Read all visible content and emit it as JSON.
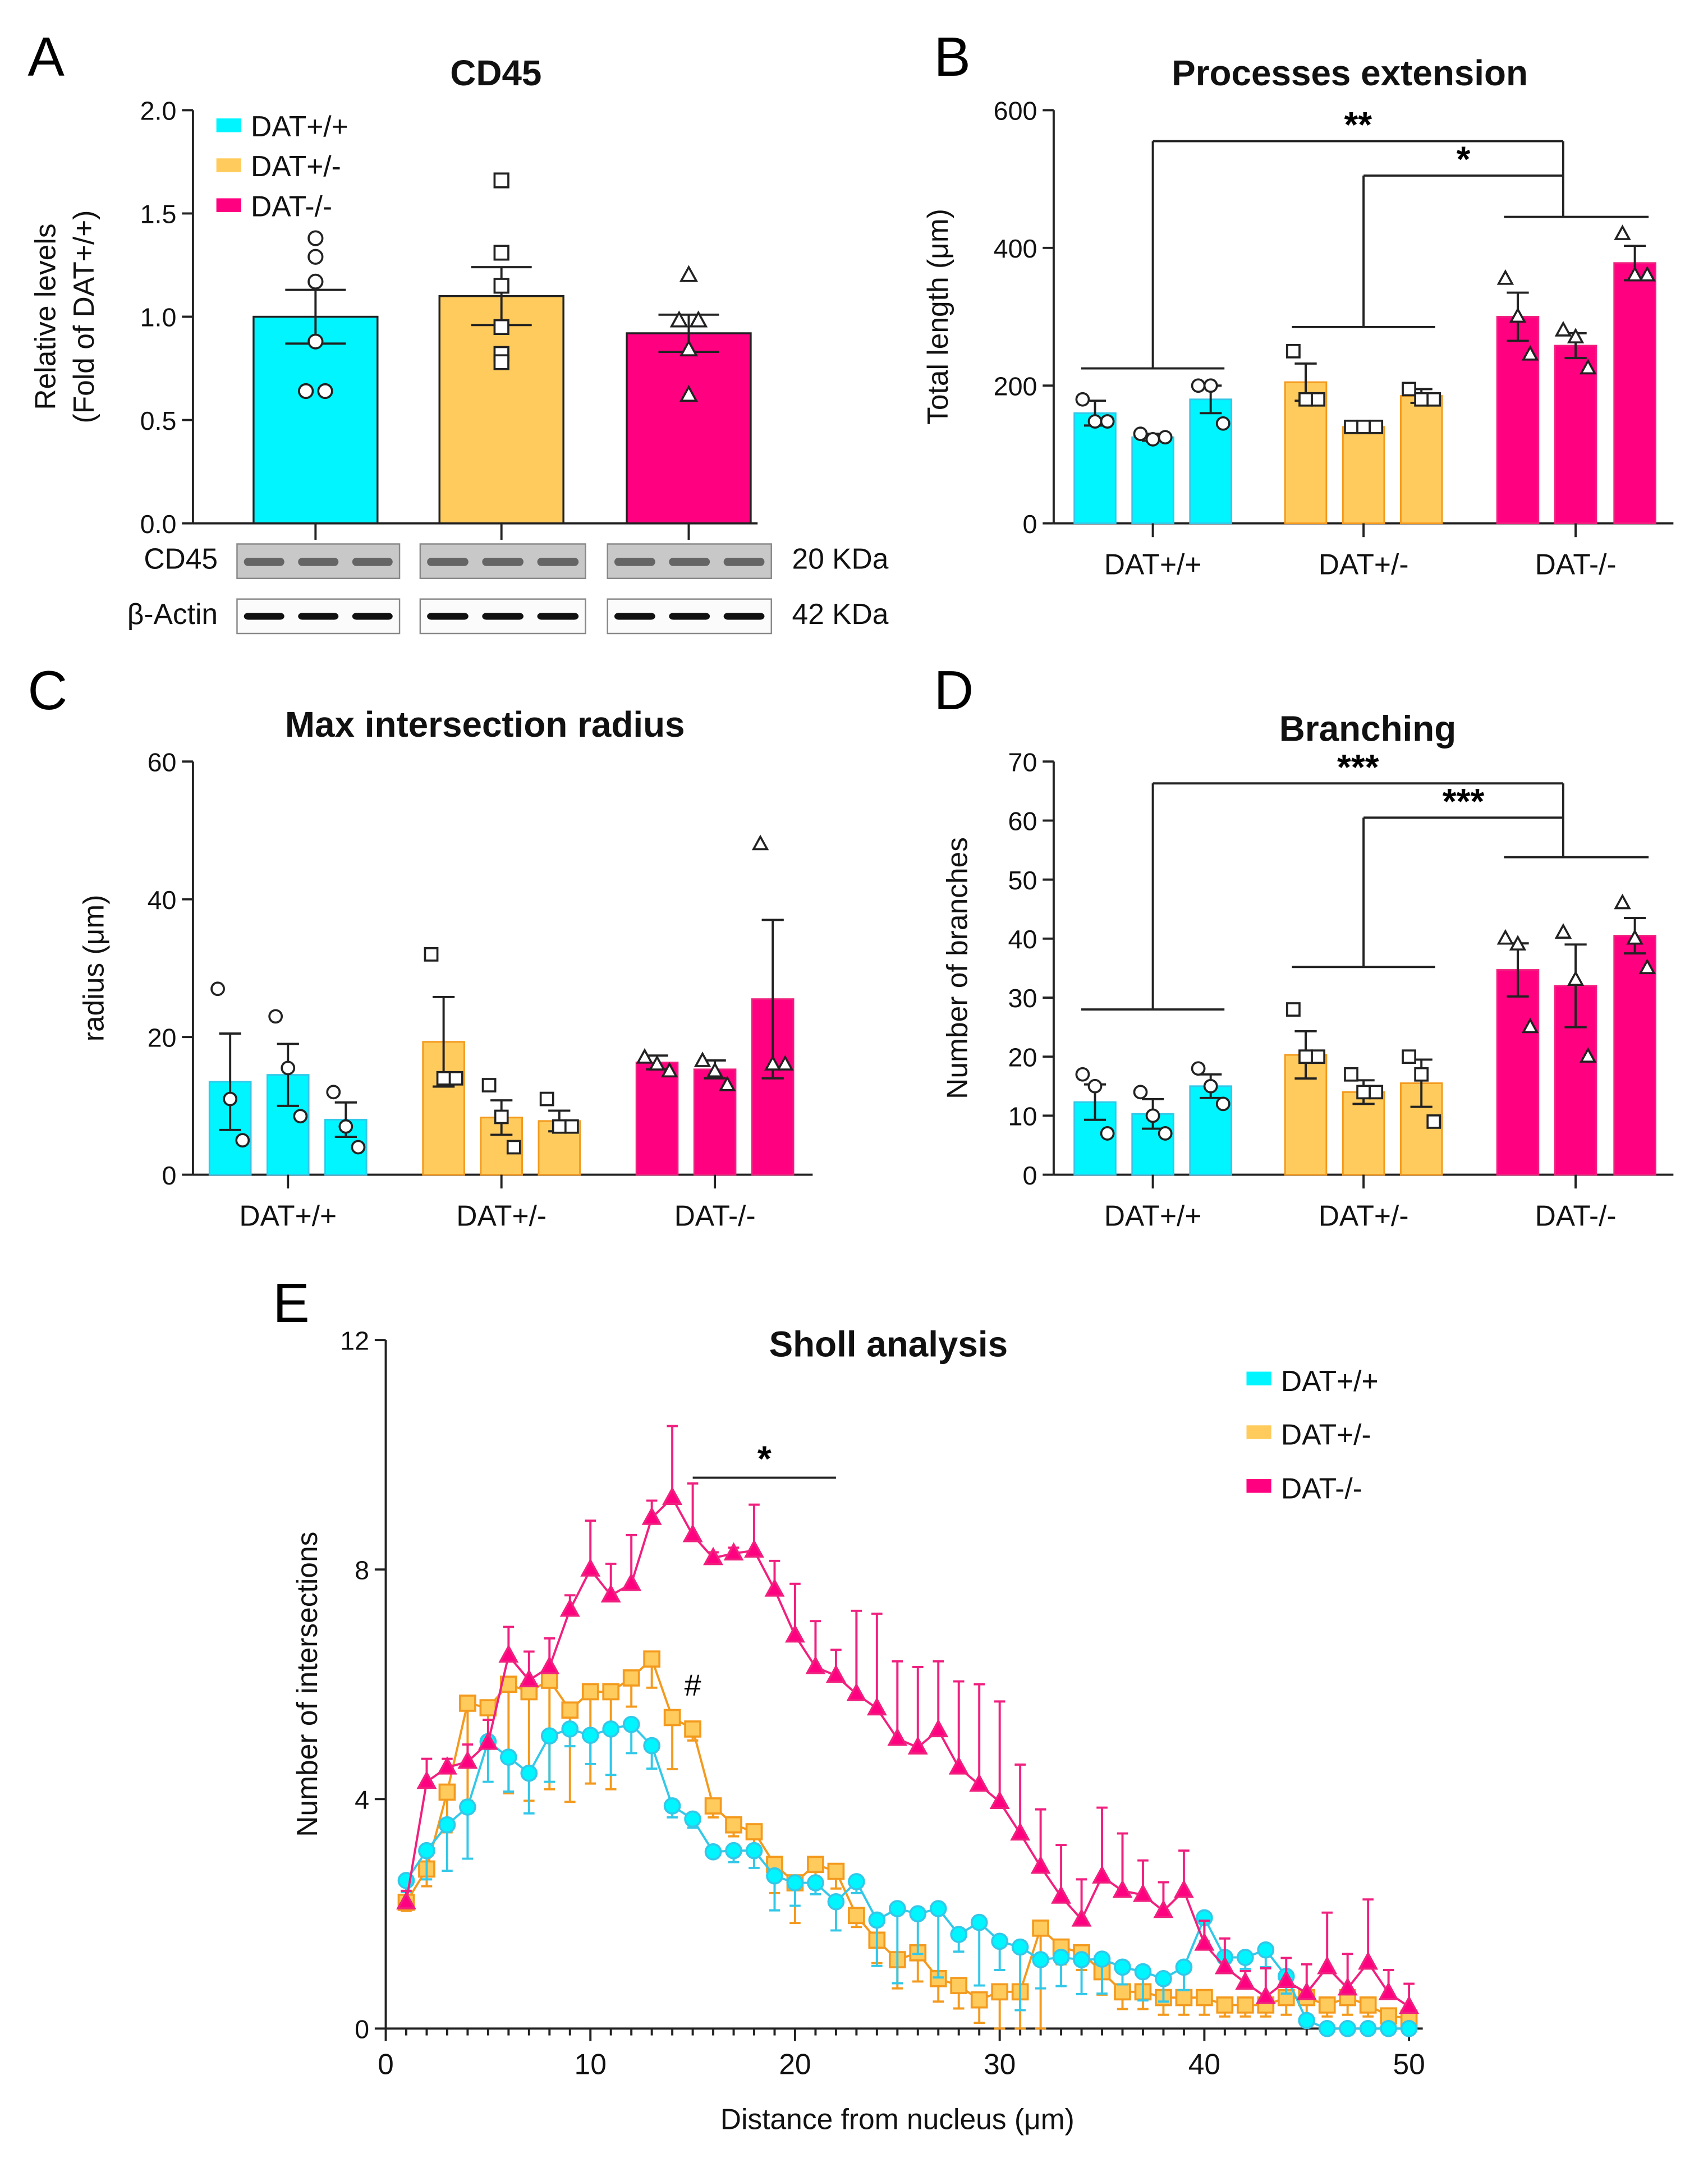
{
  "colors": {
    "wt": "#00F5FF",
    "het": "#FFCB5C",
    "ko": "#FF0080",
    "wt_line": "#33C8E8",
    "het_line": "#F39A1E",
    "ko_line": "#F0207F"
  },
  "chart_data": [
    {
      "panel": "A",
      "type": "bar",
      "title": "CD45",
      "ylabel": [
        "Relative levels",
        "(Fold of DAT+/+)"
      ],
      "ylim": [
        0,
        2.0
      ],
      "yticks": [
        "0.0",
        "0.5",
        "1.0",
        "1.5",
        "2.0"
      ],
      "legend": [
        "DAT+/+",
        "DAT+/-",
        "DAT-/-"
      ],
      "legend_placement": "top-left",
      "bars": [
        {
          "group": "DAT+/+",
          "value": 1.0,
          "sem": 0.13,
          "points": [
            1.38,
            1.29,
            1.17,
            0.88,
            0.64,
            0.64
          ]
        },
        {
          "group": "DAT+/-",
          "value": 1.1,
          "sem": 0.14,
          "points": [
            1.66,
            1.31,
            1.15,
            0.95,
            0.82,
            0.78
          ]
        },
        {
          "group": "DAT-/-",
          "value": 0.92,
          "sem": 0.09,
          "points": [
            1.2,
            0.98,
            0.98,
            0.84,
            0.62
          ]
        }
      ],
      "blot": {
        "rows": [
          {
            "label": "CD45",
            "size": "20 KDa"
          },
          {
            "label": "β-Actin",
            "size": "42 KDa"
          }
        ]
      }
    },
    {
      "panel": "B",
      "type": "bar",
      "title": "Processes extension",
      "ylabel": "Total length (μm)",
      "ylim": [
        0,
        600
      ],
      "yticks": [
        "0",
        "200",
        "400",
        "600"
      ],
      "categories": [
        "DAT+/+",
        "DAT+/-",
        "DAT-/-"
      ],
      "bars": [
        [
          {
            "value": 160,
            "sem": 18,
            "points": [
              180,
              148,
              148
            ]
          },
          {
            "value": 125,
            "sem": 5,
            "points": [
              130,
              122,
              125
            ]
          },
          {
            "value": 180,
            "sem": 20,
            "points": [
              200,
              200,
              145
            ]
          }
        ],
        [
          {
            "value": 205,
            "sem": 27,
            "points": [
              250,
              180,
              180
            ]
          },
          {
            "value": 140,
            "sem": 5,
            "points": [
              140,
              140,
              140
            ]
          },
          {
            "value": 185,
            "sem": 10,
            "points": [
              195,
              180,
              180
            ]
          }
        ],
        [
          {
            "value": 300,
            "sem": 35,
            "points": [
              355,
              300,
              245
            ]
          },
          {
            "value": 258,
            "sem": 18,
            "points": [
              280,
              270,
              225
            ]
          },
          {
            "value": 378,
            "sem": 25,
            "points": [
              420,
              360,
              360
            ]
          }
        ]
      ],
      "significance": [
        {
          "from": "DAT+/+",
          "to": "DAT-/-",
          "label": "**"
        },
        {
          "from": "DAT+/-",
          "to": "DAT-/-",
          "label": "*"
        }
      ],
      "group_lines": [
        225,
        285,
        445
      ],
      "bracket_levels": [
        555,
        505
      ]
    },
    {
      "panel": "C",
      "type": "bar",
      "title": "Max intersection radius",
      "ylabel": "radius (μm)",
      "ylim": [
        0,
        60
      ],
      "yticks": [
        "0",
        "20",
        "40",
        "60"
      ],
      "categories": [
        "DAT+/+",
        "DAT+/-",
        "DAT-/-"
      ],
      "bars": [
        [
          {
            "value": 13.5,
            "sem": 7,
            "points": [
              27,
              11,
              5
            ]
          },
          {
            "value": 14.5,
            "sem": 4.5,
            "points": [
              23,
              15.5,
              8.5
            ]
          },
          {
            "value": 8,
            "sem": 2.5,
            "points": [
              12,
              7,
              4
            ]
          }
        ],
        [
          {
            "value": 19.3,
            "sem": 6.5,
            "points": [
              32,
              14,
              14
            ]
          },
          {
            "value": 8.3,
            "sem": 2.5,
            "points": [
              13,
              8.4,
              4
            ]
          },
          {
            "value": 7.8,
            "sem": 1.5,
            "points": [
              11,
              7,
              7
            ]
          }
        ],
        [
          {
            "value": 16.3,
            "sem": 1,
            "points": [
              17,
              16,
              15
            ]
          },
          {
            "value": 15.3,
            "sem": 1.3,
            "points": [
              16.5,
              15,
              13
            ]
          },
          {
            "value": 25.5,
            "sem": 11.5,
            "points": [
              48,
              16,
              16
            ]
          }
        ]
      ]
    },
    {
      "panel": "D",
      "type": "bar",
      "title": "Branching",
      "ylabel": "Number of branches",
      "ylim": [
        0,
        70
      ],
      "yticks": [
        "0",
        "10",
        "20",
        "30",
        "40",
        "50",
        "60",
        "70"
      ],
      "categories": [
        "DAT+/+",
        "DAT+/-",
        "DAT-/-"
      ],
      "bars": [
        [
          {
            "value": 12.3,
            "sem": 3,
            "points": [
              17,
              15,
              7
            ]
          },
          {
            "value": 10.3,
            "sem": 2.5,
            "points": [
              14,
              10,
              7
            ]
          },
          {
            "value": 15,
            "sem": 2,
            "points": [
              18,
              15,
              12
            ]
          }
        ],
        [
          {
            "value": 20.3,
            "sem": 4,
            "points": [
              28,
              20,
              20
            ]
          },
          {
            "value": 14,
            "sem": 2,
            "points": [
              17,
              14,
              14
            ]
          },
          {
            "value": 15.5,
            "sem": 4,
            "points": [
              20,
              17,
              9
            ]
          }
        ],
        [
          {
            "value": 34.7,
            "sem": 4.5,
            "points": [
              40,
              39,
              25
            ]
          },
          {
            "value": 32,
            "sem": 7,
            "points": [
              41,
              33,
              20
            ]
          },
          {
            "value": 40.5,
            "sem": 3,
            "points": [
              46,
              40,
              35
            ]
          }
        ]
      ],
      "significance": [
        {
          "from": "DAT+/+",
          "to": "DAT-/-",
          "label": "***"
        },
        {
          "from": "DAT+/-",
          "to": "DAT-/-",
          "label": "***"
        }
      ],
      "group_lines": [
        28,
        35.2,
        53.8
      ],
      "bracket_levels": [
        66.3,
        60.5
      ]
    },
    {
      "panel": "E",
      "type": "line",
      "title": "Sholl analysis",
      "xlabel": "Distance from nucleus (μm)",
      "ylabel": "Number of intersections",
      "xlim": [
        0,
        50
      ],
      "ylim": [
        0,
        12
      ],
      "xticks": [
        "0",
        "10",
        "20",
        "30",
        "40",
        "50"
      ],
      "yticks": [
        "0",
        "4",
        "8",
        "12"
      ],
      "legend_placement": "top-right",
      "x": [
        1,
        2,
        3,
        4,
        5,
        6,
        7,
        8,
        9,
        10,
        11,
        12,
        13,
        14,
        15,
        16,
        17,
        18,
        19,
        20,
        21,
        22,
        23,
        24,
        25,
        26,
        27,
        28,
        29,
        30,
        31,
        32,
        33,
        34,
        35,
        36,
        37,
        38,
        39,
        40,
        41,
        42,
        43,
        44,
        45,
        46,
        47,
        48,
        49,
        50
      ],
      "series": [
        {
          "name": "DAT+/+",
          "marker": "circle",
          "error": "down",
          "values": [
            2.58,
            3.1,
            3.55,
            3.86,
            5.0,
            4.73,
            4.45,
            5.1,
            5.22,
            5.11,
            5.22,
            5.3,
            4.93,
            3.88,
            3.65,
            3.08,
            3.1,
            3.1,
            2.66,
            2.54,
            2.54,
            2.21,
            2.56,
            1.89,
            2.09,
            2.0,
            2.09,
            1.64,
            1.85,
            1.52,
            1.42,
            1.2,
            1.24,
            1.2,
            1.21,
            1.07,
            0.99,
            0.87,
            1.07,
            1.93,
            1.24,
            1.24,
            1.37,
            0.91,
            0.14,
            0,
            0,
            0,
            0,
            0
          ],
          "sem": [
            0.2,
            0.5,
            0.8,
            0.9,
            0.7,
            0.6,
            0.7,
            0.8,
            0.3,
            0.5,
            0.8,
            0.5,
            0.4,
            0.2,
            0.15,
            0.1,
            0.2,
            0.3,
            0.6,
            0.4,
            0.2,
            0.5,
            0.2,
            0.8,
            1.3,
            0.7,
            1.2,
            0.3,
            1.1,
            0.5,
            1.1,
            0.5,
            0.5,
            0.6,
            0.6,
            0.3,
            0.5,
            0.4,
            0.4,
            0.4,
            0.2,
            0.2,
            0.3,
            0.3,
            0.05,
            0,
            0,
            0,
            0,
            0
          ]
        },
        {
          "name": "DAT+/-",
          "marker": "square",
          "error": "down",
          "values": [
            2.2,
            2.78,
            4.12,
            5.67,
            5.59,
            6.0,
            5.87,
            6.07,
            5.55,
            5.87,
            5.87,
            6.11,
            6.44,
            5.42,
            5.22,
            3.88,
            3.55,
            3.43,
            2.86,
            2.54,
            2.86,
            2.74,
            1.97,
            1.54,
            1.2,
            1.32,
            0.87,
            0.75,
            0.5,
            0.64,
            0.64,
            1.75,
            1.42,
            1.32,
            0.99,
            0.64,
            0.64,
            0.54,
            0.54,
            0.54,
            0.41,
            0.41,
            0.41,
            0.54,
            0.54,
            0.41,
            0.54,
            0.41,
            0.22,
            0.18
          ],
          "sem": [
            0.15,
            0.3,
            0.7,
            1.7,
            0.7,
            1.9,
            1.9,
            1.9,
            1.6,
            1.6,
            1.7,
            0.5,
            0.5,
            0.9,
            0.2,
            0.2,
            0.2,
            0.4,
            0.5,
            0.7,
            0.3,
            0.3,
            0.2,
            0.4,
            0.5,
            0.5,
            0.4,
            0.4,
            0.4,
            0.64,
            0.64,
            1.75,
            0.3,
            0.3,
            0.4,
            0.3,
            0.3,
            0.3,
            0.3,
            0.3,
            0.2,
            0.2,
            0.2,
            0.3,
            0.3,
            0.2,
            0.3,
            0.2,
            0.1,
            0.1
          ]
        },
        {
          "name": "DAT-/-",
          "marker": "triangle",
          "error": "up",
          "values": [
            2.2,
            4.3,
            4.55,
            4.65,
            4.98,
            6.5,
            6.07,
            6.3,
            7.3,
            8.0,
            7.55,
            7.75,
            8.9,
            9.25,
            8.6,
            8.2,
            8.28,
            8.33,
            7.65,
            6.85,
            6.3,
            6.15,
            5.83,
            5.58,
            5.05,
            4.9,
            5.2,
            4.55,
            4.25,
            3.95,
            3.4,
            2.82,
            2.3,
            1.9,
            2.65,
            2.4,
            2.33,
            2.05,
            2.4,
            1.48,
            1.07,
            0.8,
            0.55,
            0.83,
            0.62,
            1.07,
            0.7,
            1.15,
            0.62,
            0.38
          ],
          "sem": [
            0.2,
            0.4,
            0.15,
            0.3,
            0.4,
            0.5,
            0.5,
            0.5,
            0.25,
            0.85,
            0.55,
            0.85,
            0.3,
            1.25,
            0.9,
            0.1,
            0.1,
            0.8,
            0.5,
            0.9,
            0.8,
            0.45,
            1.45,
            1.65,
            1.35,
            1.4,
            1.2,
            1.5,
            1.75,
            1.75,
            1.2,
            1.0,
            0.9,
            0.7,
            1.2,
            1.0,
            0.6,
            0.5,
            0.7,
            0.4,
            0.5,
            0.2,
            0.5,
            0.4,
            0.5,
            0.95,
            0.6,
            1.1,
            0.4,
            0.4
          ]
        }
      ],
      "annotations": [
        {
          "label": "*",
          "x_from": 15,
          "x_to": 22,
          "y": 9.6
        },
        {
          "label": "#",
          "x": 15,
          "y": 6.0
        }
      ]
    }
  ],
  "panel_labels": [
    "A",
    "B",
    "C",
    "D",
    "E"
  ]
}
